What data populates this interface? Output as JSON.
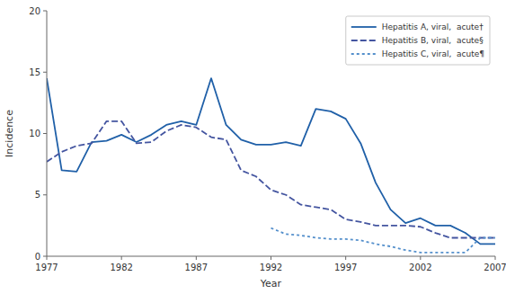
{
  "chart_data": {
    "type": "line",
    "xlabel": "Year",
    "ylabel": "Incidence",
    "xlim": [
      1977,
      2007
    ],
    "ylim": [
      0,
      20
    ],
    "xticks": [
      1977,
      1982,
      1987,
      1992,
      1997,
      2002,
      2007
    ],
    "yticks": [
      0,
      5,
      10,
      15,
      20
    ],
    "grid": false,
    "legend": "upper-right",
    "series": [
      {
        "name": "Hepatitis A, viral,  acute†",
        "color": "#2060a8",
        "line_style": "solid",
        "x": [
          1977,
          1978,
          1979,
          1980,
          1981,
          1982,
          1983,
          1984,
          1985,
          1986,
          1987,
          1988,
          1989,
          1990,
          1991,
          1992,
          1993,
          1994,
          1995,
          1996,
          1997,
          1998,
          1999,
          2000,
          2001,
          2002,
          2003,
          2004,
          2005,
          2006,
          2007
        ],
        "values": [
          14.5,
          7.0,
          6.9,
          9.3,
          9.4,
          9.9,
          9.3,
          9.9,
          10.7,
          11.0,
          10.7,
          14.5,
          10.7,
          9.5,
          9.1,
          9.1,
          9.3,
          9.0,
          12.0,
          11.8,
          11.2,
          9.2,
          6.0,
          3.8,
          2.7,
          3.1,
          2.5,
          2.5,
          1.9,
          1.0,
          1.0
        ]
      },
      {
        "name": "Hepatitis B, viral,  acute§",
        "color": "#4455a0",
        "line_style": "dashed",
        "x": [
          1977,
          1978,
          1979,
          1980,
          1981,
          1982,
          1983,
          1984,
          1985,
          1986,
          1987,
          1988,
          1989,
          1990,
          1991,
          1992,
          1993,
          1994,
          1995,
          1996,
          1997,
          1998,
          1999,
          2000,
          2001,
          2002,
          2003,
          2004,
          2005,
          2006,
          2007
        ],
        "values": [
          7.7,
          8.5,
          9.0,
          9.2,
          11.0,
          11.0,
          9.2,
          9.3,
          10.2,
          10.7,
          10.5,
          9.7,
          9.5,
          7.0,
          6.5,
          5.4,
          5.0,
          4.2,
          4.0,
          3.8,
          3.0,
          2.8,
          2.5,
          2.5,
          2.5,
          2.4,
          1.9,
          1.5,
          1.5,
          1.5,
          1.5
        ]
      },
      {
        "name": "Hepatitis C, viral,  acute¶",
        "color": "#5590cc",
        "line_style": "dotted",
        "x": [
          1992,
          1993,
          1994,
          1995,
          1996,
          1997,
          1998,
          1999,
          2000,
          2001,
          2002,
          2003,
          2004,
          2005,
          2006,
          2007
        ],
        "values": [
          2.3,
          1.8,
          1.7,
          1.5,
          1.4,
          1.4,
          1.3,
          1.0,
          0.8,
          0.5,
          0.3,
          0.3,
          0.3,
          0.3,
          1.5,
          1.5
        ]
      }
    ]
  }
}
